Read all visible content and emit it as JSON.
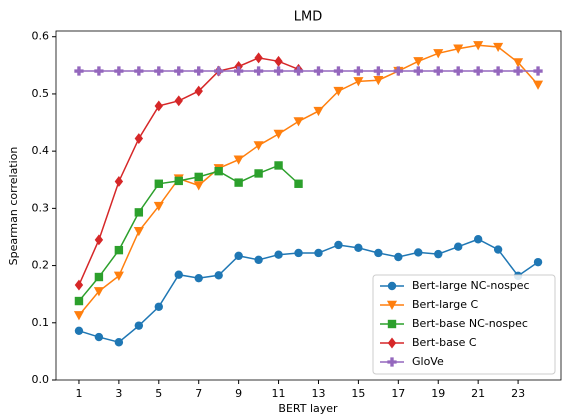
{
  "chart_data": {
    "type": "line",
    "title": "LMD",
    "x_label": "BERT layer",
    "y_label": "Spearman correlation",
    "xlim": [
      -0.15,
      25.15
    ],
    "xticks": [
      1,
      3,
      5,
      7,
      9,
      11,
      13,
      15,
      17,
      19,
      21,
      23
    ],
    "ylim": [
      0,
      0.61
    ],
    "yticks": [
      {
        "value": 0,
        "label": "0.0"
      },
      0.1,
      0.2,
      0.3,
      0.4,
      0.5,
      0.6
    ],
    "grid": false,
    "legend": "lower right",
    "series": [
      {
        "name": "Bert-large NC-nospec",
        "color": "#1f77b4",
        "marker": "circle",
        "x": [
          1,
          2,
          3,
          4,
          5,
          6,
          7,
          8,
          9,
          10,
          11,
          12,
          13,
          14,
          15,
          16,
          17,
          18,
          19,
          20,
          21,
          22,
          23,
          24
        ],
        "values": [
          0.086,
          0.075,
          0.066,
          0.095,
          0.128,
          0.184,
          0.178,
          0.183,
          0.217,
          0.21,
          0.219,
          0.222,
          0.222,
          0.236,
          0.231,
          0.222,
          0.215,
          0.223,
          0.22,
          0.233,
          0.246,
          0.228,
          0.182,
          0.206
        ]
      },
      {
        "name": "Bert-large C",
        "color": "#ff7f0e",
        "marker": "triangle-down",
        "x": [
          1,
          2,
          3,
          4,
          5,
          6,
          7,
          8,
          9,
          10,
          11,
          12,
          13,
          14,
          15,
          16,
          17,
          18,
          19,
          20,
          21,
          22,
          23,
          24
        ],
        "values": [
          0.113,
          0.155,
          0.182,
          0.26,
          0.304,
          0.352,
          0.34,
          0.37,
          0.385,
          0.41,
          0.43,
          0.452,
          0.47,
          0.505,
          0.522,
          0.524,
          0.54,
          0.557,
          0.571,
          0.579,
          0.585,
          0.582,
          0.555,
          0.516
        ]
      },
      {
        "name": "Bert-base NC-nospec",
        "color": "#2ca02c",
        "marker": "square",
        "x": [
          1,
          2,
          3,
          4,
          5,
          6,
          7,
          8,
          9,
          10,
          11,
          12
        ],
        "values": [
          0.138,
          0.18,
          0.227,
          0.293,
          0.343,
          0.348,
          0.355,
          0.365,
          0.345,
          0.361,
          0.375,
          0.343
        ]
      },
      {
        "name": "Bert-base C",
        "color": "#d62728",
        "marker": "diamond",
        "x": [
          1,
          2,
          3,
          4,
          5,
          6,
          7,
          8,
          9,
          10,
          11,
          12
        ],
        "values": [
          0.166,
          0.245,
          0.347,
          0.422,
          0.479,
          0.488,
          0.505,
          0.54,
          0.548,
          0.563,
          0.557,
          0.543
        ]
      },
      {
        "name": "GloVe",
        "color": "#9467bd",
        "marker": "plus",
        "x": [
          1,
          2,
          3,
          4,
          5,
          6,
          7,
          8,
          9,
          10,
          11,
          12,
          13,
          14,
          15,
          16,
          17,
          18,
          19,
          20,
          21,
          22,
          23,
          24
        ],
        "values": [
          0.54,
          0.54,
          0.54,
          0.54,
          0.54,
          0.54,
          0.54,
          0.54,
          0.54,
          0.54,
          0.54,
          0.54,
          0.54,
          0.54,
          0.54,
          0.54,
          0.54,
          0.54,
          0.54,
          0.54,
          0.54,
          0.54,
          0.54,
          0.54
        ]
      }
    ]
  }
}
